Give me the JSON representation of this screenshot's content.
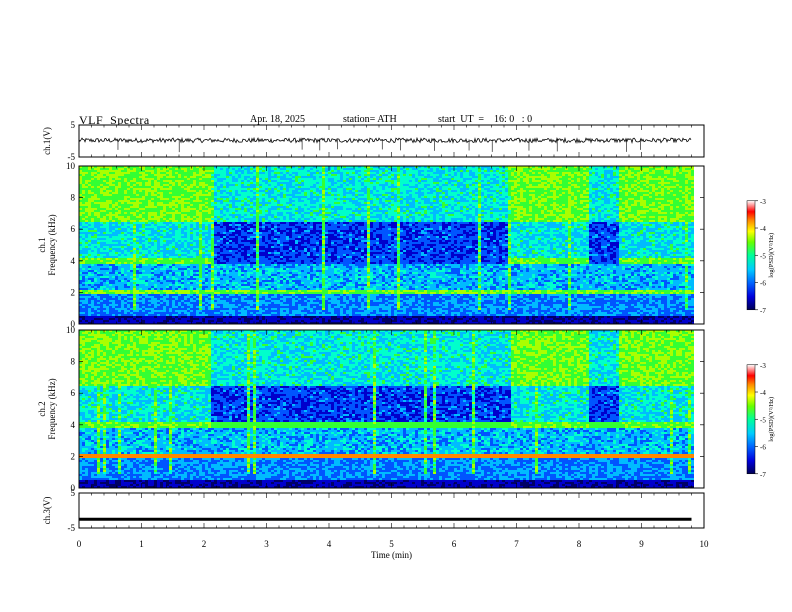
{
  "header": {
    "title": "VLF  Spectra",
    "date": "Apr. 18, 2025",
    "station": "station= ATH",
    "start_ut": "start  UT  =    16: 0   : 0"
  },
  "colors": {
    "colormap": [
      "#000066",
      "#0000cc",
      "#0055ff",
      "#00bbff",
      "#00ffcc",
      "#33ff33",
      "#aaff00",
      "#ffff00",
      "#ff8800",
      "#ff0000",
      "#ffffff"
    ],
    "waveform": "#000000"
  },
  "chart_data": [
    {
      "type": "line",
      "panel": "ch1-waveform",
      "ylabel": "ch.1(V)",
      "ylim": [
        -5,
        5
      ],
      "yticks": [
        "5",
        "-5"
      ],
      "xlim": [
        0,
        10
      ],
      "note_level": 0.2,
      "amplitude": 0.7,
      "data_end_min": 9.8
    },
    {
      "type": "heatmap",
      "panel": "ch1-spectrogram",
      "ylabel": "ch.1\nFrequency  (kHz)",
      "ylim": [
        0,
        10
      ],
      "yticks": [
        "0",
        "2",
        "4",
        "6",
        "8",
        "10"
      ],
      "xlim": [
        0,
        10
      ],
      "data_end_min": 9.8,
      "quiet_intervals_min": [
        [
          2.1,
          6.9
        ],
        [
          8.15,
          8.6
        ]
      ],
      "colorbar": {
        "label": "log(PSD)(V²/Hz)",
        "range": [
          -7,
          -3
        ],
        "ticks": [
          "-3",
          "-4",
          "-5",
          "-6",
          "-7"
        ]
      }
    },
    {
      "type": "heatmap",
      "panel": "ch2-spectrogram",
      "ylabel": "ch.2\nFrequency  (kHz)",
      "ylim": [
        0,
        10
      ],
      "yticks": [
        "0",
        "2",
        "4",
        "6",
        "8",
        "10"
      ],
      "xlim": [
        0,
        10
      ],
      "data_end_min": 9.8,
      "quiet_intervals_min": [
        [
          2.1,
          6.9
        ],
        [
          8.15,
          8.6
        ]
      ],
      "colorbar": {
        "label": "log(PSD)(V²/Hz)",
        "range": [
          -7,
          -3
        ],
        "ticks": [
          "-3",
          "-4",
          "-5",
          "-6",
          "-7"
        ]
      }
    },
    {
      "type": "line",
      "panel": "ch3-waveform",
      "ylabel": "ch.3(V)",
      "ylim": [
        -5,
        5
      ],
      "yticks": [
        "5",
        "-5"
      ],
      "xlim": [
        0,
        10
      ],
      "level": -2.5,
      "data_end_min": 9.8,
      "xlabel": "Time  (min)",
      "xticks": [
        "0",
        "1",
        "2",
        "3",
        "4",
        "5",
        "6",
        "7",
        "8",
        "9",
        "10"
      ]
    }
  ]
}
